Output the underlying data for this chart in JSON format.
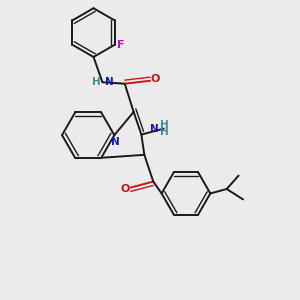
{
  "bg_color": "#ebebeb",
  "bond_color": "#1a1a1a",
  "N_color": "#1414c8",
  "O_color": "#cc1414",
  "F_color": "#cc00cc",
  "H_color": "#3a9090",
  "figsize": [
    3.0,
    3.0
  ],
  "dpi": 100,
  "xlim": [
    0,
    10
  ],
  "ylim": [
    0,
    10
  ]
}
